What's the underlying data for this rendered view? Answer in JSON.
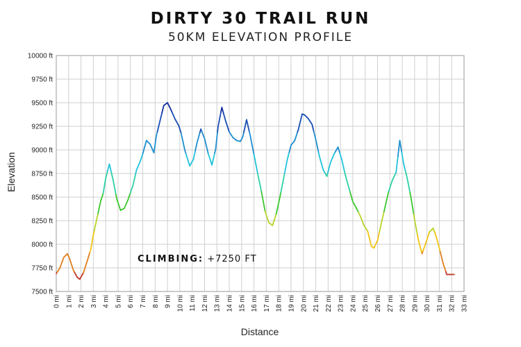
{
  "header": {
    "title": "DIRTY 30 TRAIL RUN",
    "subtitle": "50KM ELEVATION PROFILE"
  },
  "annotation": {
    "label": "CLIMBING:",
    "value": " +7250 FT"
  },
  "chart_data": {
    "type": "line",
    "title": "DIRTY 30 TRAIL RUN",
    "subtitle": "50KM ELEVATION PROFILE",
    "xlabel": "Distance",
    "ylabel": "Elevation",
    "xlim": [
      0,
      33
    ],
    "ylim": [
      7500,
      10000
    ],
    "x_ticks": [
      "0 mi",
      "1 mi",
      "2 mi",
      "3 mi",
      "4 mi",
      "5 mi",
      "6 mi",
      "7 mi",
      "8 mi",
      "9 mi",
      "10 mi",
      "11 mi",
      "12 mi",
      "13 mi",
      "14 mi",
      "15 mi",
      "16 mi",
      "17 mi",
      "18 mi",
      "19 mi",
      "20 mi",
      "21 mi",
      "22 mi",
      "23 mi",
      "24 mi",
      "25 mi",
      "26 mi",
      "27 mi",
      "28 mi",
      "29 mi",
      "30 mi",
      "31 mi",
      "32 mi",
      "33 mi"
    ],
    "y_ticks": [
      "10000 ft",
      "9750 ft",
      "9500 ft",
      "9250 ft",
      "9000 ft",
      "8750 ft",
      "8500 ft",
      "8250 ft",
      "8000 ft",
      "7750 ft",
      "7500 ft"
    ],
    "grid": true,
    "color_scale": [
      "#c0392b",
      "#e07f1f",
      "#f2c313",
      "#b7d42b",
      "#3cc82f",
      "#2fd0a7",
      "#22c3dc",
      "#1f8fd0",
      "#1a4fb5",
      "#1530a0"
    ],
    "series": [
      {
        "x": [
          0,
          0.3,
          0.6,
          0.9,
          1.1,
          1.4,
          1.7,
          1.9,
          2.2,
          2.5,
          2.8,
          3.0,
          3.3,
          3.6,
          3.8,
          4.0,
          4.3,
          4.6,
          4.9,
          5.2,
          5.5,
          5.8,
          6.2,
          6.5,
          6.8,
          7.0,
          7.3,
          7.6,
          7.9,
          8.1,
          8.4,
          8.7,
          9.0,
          9.3,
          9.6,
          9.9,
          10.1,
          10.4,
          10.8,
          11.1,
          11.4,
          11.7,
          12.0,
          12.3,
          12.6,
          12.9,
          13.1,
          13.4,
          13.7,
          14.0,
          14.3,
          14.6,
          14.9,
          15.1,
          15.4,
          15.7,
          16.0,
          16.3,
          16.6,
          16.9,
          17.2,
          17.5,
          17.8,
          18.1,
          18.4,
          18.7,
          19.0,
          19.3,
          19.6,
          19.9,
          20.1,
          20.4,
          20.7,
          21.0,
          21.3,
          21.6,
          21.9,
          22.2,
          22.5,
          22.8,
          23.1,
          23.4,
          23.7,
          24.0,
          24.3,
          24.6,
          24.9,
          25.2,
          25.5,
          25.7,
          26.0,
          26.3,
          26.6,
          26.9,
          27.2,
          27.5,
          27.8,
          28.1,
          28.4,
          28.7,
          29.0,
          29.3,
          29.6,
          29.9,
          30.2,
          30.5,
          30.7,
          31.0,
          31.3,
          31.6,
          31.9,
          32.2
        ],
        "y": [
          7690,
          7750,
          7860,
          7900,
          7840,
          7720,
          7650,
          7630,
          7700,
          7820,
          7950,
          8100,
          8280,
          8460,
          8540,
          8700,
          8850,
          8680,
          8480,
          8360,
          8380,
          8470,
          8620,
          8790,
          8880,
          8960,
          9100,
          9060,
          8970,
          9150,
          9310,
          9470,
          9500,
          9420,
          9330,
          9260,
          9180,
          9000,
          8830,
          8900,
          9080,
          9220,
          9120,
          8960,
          8840,
          9010,
          9250,
          9450,
          9310,
          9190,
          9130,
          9100,
          9090,
          9140,
          9320,
          9150,
          8950,
          8750,
          8560,
          8350,
          8230,
          8200,
          8320,
          8500,
          8700,
          8900,
          9050,
          9100,
          9220,
          9380,
          9370,
          9330,
          9270,
          9110,
          8930,
          8790,
          8720,
          8870,
          8960,
          9030,
          8900,
          8730,
          8590,
          8450,
          8380,
          8300,
          8200,
          8140,
          7980,
          7960,
          8040,
          8220,
          8390,
          8560,
          8680,
          8760,
          9100,
          8860,
          8700,
          8500,
          8260,
          8050,
          7900,
          8010,
          8130,
          8170,
          8100,
          7960,
          7800,
          7680,
          7680,
          7680
        ]
      }
    ]
  }
}
